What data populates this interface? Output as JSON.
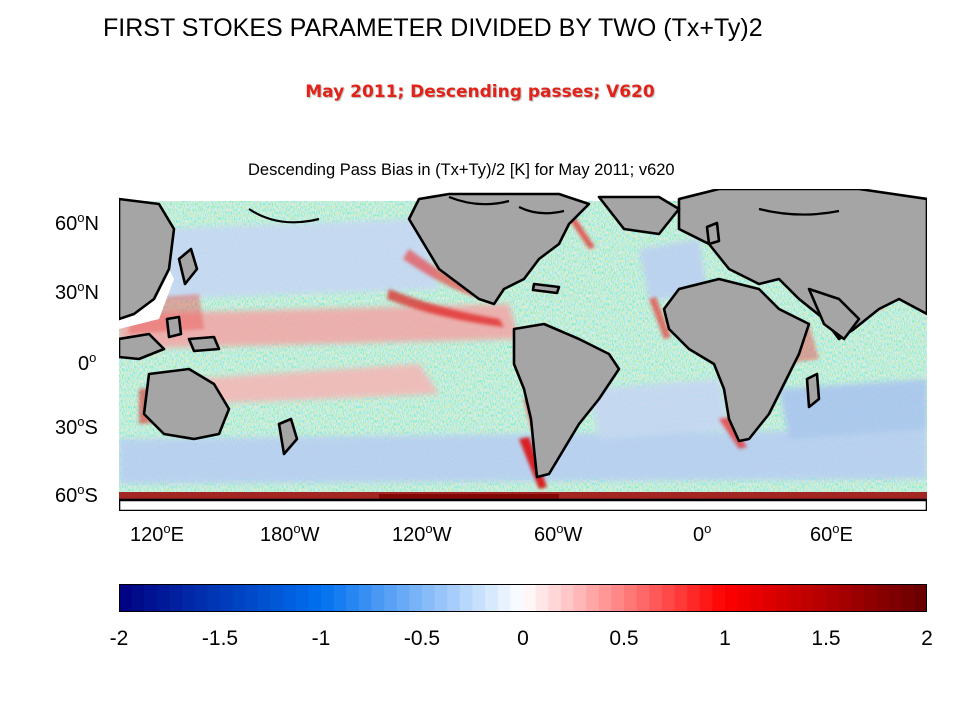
{
  "slide": {
    "title": "FIRST STOKES PARAMETER DIVIDED BY TWO (Tx+Ty)2",
    "subtitle": "May 2011; Descending passes; V620"
  },
  "map": {
    "title": "Descending Pass Bias in (Tx+Ty)/2 [K] for May 2011; v620",
    "lat_labels": [
      {
        "deg": "60",
        "dir": "N"
      },
      {
        "deg": "30",
        "dir": "N"
      },
      {
        "deg": "0",
        "dir": ""
      },
      {
        "deg": "30",
        "dir": "S"
      },
      {
        "deg": "60",
        "dir": "S"
      }
    ],
    "lon_labels": [
      {
        "deg": "120",
        "dir": "E"
      },
      {
        "deg": "180",
        "dir": "W"
      },
      {
        "deg": "120",
        "dir": "W"
      },
      {
        "deg": "60",
        "dir": "W"
      },
      {
        "deg": "0",
        "dir": ""
      },
      {
        "deg": "60",
        "dir": "E"
      }
    ],
    "colors": {
      "land": "#a5a5a5",
      "coast": "#000000",
      "ocean": "#f4f4fb",
      "ice": "#ffffff"
    }
  },
  "colorbar": {
    "ticks": [
      "-2",
      "-1.5",
      "-1",
      "-0.5",
      "0",
      "0.5",
      "1",
      "1.5",
      "2"
    ],
    "range": [
      -2,
      2
    ],
    "colors": {
      "min": "#00007f",
      "neg_mid": "#0070f0",
      "zero": "#ffffff",
      "pos_mid": "#ff0000",
      "max": "#660000"
    }
  }
}
